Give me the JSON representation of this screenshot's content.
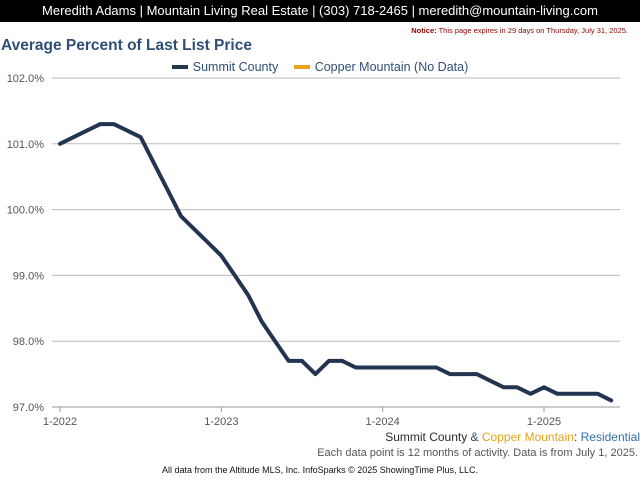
{
  "header": {
    "contact": "Meredith Adams | Mountain Living Real Estate | (303) 718-2465 | meredith@mountain-living.com"
  },
  "notice": {
    "label": "Notice:",
    "text": "This page expires in 29 days on Thursday, July 31, 2025."
  },
  "footer": {
    "series_a": "Summit County",
    "amp": " & ",
    "series_b": "Copper Mountain",
    "colon": ": ",
    "segment": "Residential",
    "note": "Each data point is 12 months of activity. Data is from July 1, 2025.",
    "source": "All data from the Altitude MLS, Inc. InfoSparks © 2025 ShowingTime Plus, LLC."
  },
  "colors": {
    "series_a": "#22344f",
    "series_b": "#e8a317",
    "title": "#2f4f75",
    "grid": "#bbbbbb"
  },
  "chart_data": {
    "type": "line",
    "title": "Average Percent of Last List Price",
    "xlabel": "",
    "ylabel": "",
    "ylim": [
      97.0,
      102.0
    ],
    "yticks": [
      "97.0%",
      "98.0%",
      "99.0%",
      "100.0%",
      "101.0%",
      "102.0%"
    ],
    "ytick_values": [
      97.0,
      98.0,
      99.0,
      100.0,
      101.0,
      102.0
    ],
    "xticks": [
      "1-2022",
      "1-2023",
      "1-2024",
      "1-2025"
    ],
    "xtick_index": [
      0,
      12,
      24,
      36
    ],
    "x_start": "2022-01",
    "x_end": "2025-06",
    "grid": true,
    "legend_position": "top-center",
    "series": [
      {
        "name": "Summit County",
        "values": [
          101.0,
          101.1,
          101.2,
          101.3,
          101.3,
          101.2,
          101.1,
          100.7,
          100.3,
          99.9,
          99.7,
          99.5,
          99.3,
          99.0,
          98.7,
          98.3,
          98.0,
          97.7,
          97.7,
          97.5,
          97.7,
          97.7,
          97.6,
          97.6,
          97.6,
          97.6,
          97.6,
          97.6,
          97.6,
          97.5,
          97.5,
          97.5,
          97.4,
          97.3,
          97.3,
          97.2,
          97.3,
          97.2,
          97.2,
          97.2,
          97.2,
          97.1
        ]
      },
      {
        "name": "Copper Mountain (No Data)",
        "values": []
      }
    ]
  }
}
